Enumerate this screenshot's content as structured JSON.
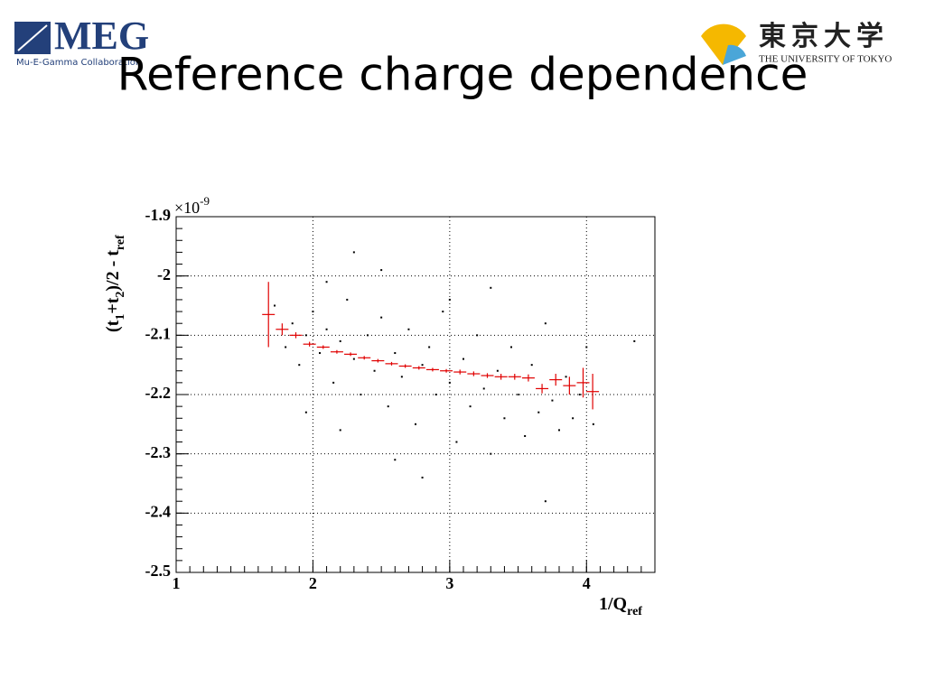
{
  "slide": {
    "title": "Reference charge dependence",
    "left_logo": {
      "text": "MEG",
      "subtext": "Mu-E-Gamma Collaboration"
    },
    "right_logo": {
      "text": "東京大学",
      "subtext": "THE UNIVERSITY OF TOKYO"
    }
  },
  "chart_data": {
    "type": "scatter",
    "xlabel": "1/Q",
    "xlabel_sub": "ref",
    "ylabel_parts": [
      {
        "text": "(t"
      },
      {
        "text": "1",
        "sub": true
      },
      {
        "text": "+t"
      },
      {
        "text": "2",
        "sub": true
      },
      {
        "text": ")/2 - t"
      },
      {
        "text": "ref",
        "sub": true
      }
    ],
    "y_multiplier": "×10",
    "y_multiplier_exp": "-9",
    "xlim": [
      1,
      4.5
    ],
    "xticks": [
      1,
      2,
      3,
      4
    ],
    "ylim": [
      -2.5,
      -1.9
    ],
    "yticks": [
      -2.5,
      -2.4,
      -2.3,
      -2.2,
      -2.1,
      -2,
      -1.9
    ],
    "grid": true,
    "scatter": {
      "color": "#000000",
      "x": [
        1.72,
        1.8,
        1.85,
        1.9,
        1.95,
        2.0,
        2.05,
        2.1,
        2.15,
        2.2,
        2.25,
        2.3,
        2.35,
        2.4,
        2.45,
        2.5,
        2.55,
        2.6,
        2.65,
        2.7,
        2.75,
        2.8,
        2.85,
        2.9,
        2.95,
        3.0,
        3.05,
        3.1,
        3.15,
        3.2,
        3.25,
        3.3,
        3.35,
        3.4,
        3.45,
        3.5,
        3.55,
        3.6,
        3.65,
        3.7,
        3.75,
        3.8,
        3.85,
        3.9,
        3.95,
        4.0,
        4.05,
        2.3,
        2.6,
        1.95,
        2.5,
        3.3,
        3.7,
        2.1,
        2.8,
        4.35,
        3.0,
        2.2
      ],
      "y": [
        -2.05,
        -2.12,
        -2.08,
        -2.15,
        -2.1,
        -2.06,
        -2.13,
        -2.09,
        -2.18,
        -2.11,
        -2.04,
        -2.14,
        -2.2,
        -2.1,
        -2.16,
        -2.07,
        -2.22,
        -2.13,
        -2.17,
        -2.09,
        -2.25,
        -2.15,
        -2.12,
        -2.2,
        -2.06,
        -2.18,
        -2.28,
        -2.14,
        -2.22,
        -2.1,
        -2.19,
        -2.3,
        -2.16,
        -2.24,
        -2.12,
        -2.2,
        -2.27,
        -2.15,
        -2.23,
        -2.08,
        -2.21,
        -2.26,
        -2.17,
        -2.24,
        -2.2,
        -2.12,
        -2.25,
        -1.96,
        -2.31,
        -2.23,
        -1.99,
        -2.02,
        -2.38,
        -2.01,
        -2.34,
        -2.11,
        -2.04,
        -2.26
      ]
    },
    "profile": {
      "color": "#e00000",
      "x": [
        1.675,
        1.775,
        1.875,
        1.975,
        2.075,
        2.175,
        2.275,
        2.375,
        2.475,
        2.575,
        2.675,
        2.775,
        2.875,
        2.975,
        3.075,
        3.175,
        3.275,
        3.375,
        3.475,
        3.575,
        3.675,
        3.775,
        3.875,
        3.975,
        4.045
      ],
      "values": [
        -2.065,
        -2.09,
        -2.1,
        -2.115,
        -2.12,
        -2.128,
        -2.132,
        -2.138,
        -2.143,
        -2.148,
        -2.152,
        -2.155,
        -2.158,
        -2.16,
        -2.162,
        -2.165,
        -2.168,
        -2.17,
        -2.17,
        -2.172,
        -2.19,
        -2.175,
        -2.185,
        -2.18,
        -2.195
      ],
      "yerr": [
        0.055,
        0.01,
        0.005,
        0.004,
        0.003,
        0.003,
        0.003,
        0.003,
        0.003,
        0.003,
        0.003,
        0.003,
        0.003,
        0.003,
        0.004,
        0.004,
        0.004,
        0.005,
        0.005,
        0.006,
        0.008,
        0.01,
        0.015,
        0.025,
        0.03
      ]
    }
  }
}
